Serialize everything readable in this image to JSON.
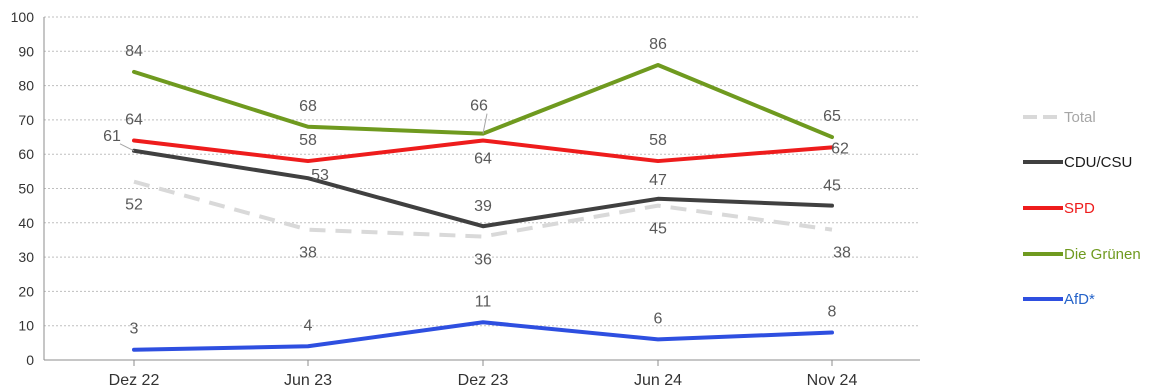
{
  "chart_data": {
    "type": "line",
    "categories": [
      "Dez 22",
      "Jun 23",
      "Dez 23",
      "Jun 24",
      "Nov 24"
    ],
    "ylim": [
      0,
      100
    ],
    "yticks": [
      0,
      10,
      20,
      30,
      40,
      50,
      60,
      70,
      80,
      90,
      100
    ],
    "grid": true,
    "legend_position": "right",
    "series": [
      {
        "name": "Total",
        "values": [
          52,
          38,
          36,
          45,
          38
        ],
        "color": "#d9d9d9",
        "dashed": true
      },
      {
        "name": "CDU/CSU",
        "values": [
          61,
          53,
          39,
          47,
          45
        ],
        "color": "#404040",
        "dashed": false
      },
      {
        "name": "SPD",
        "values": [
          64,
          58,
          64,
          58,
          62
        ],
        "color": "#ee1c1c",
        "dashed": false
      },
      {
        "name": "Die Grünen",
        "values": [
          84,
          68,
          66,
          86,
          65
        ],
        "color": "#6f9a1f",
        "dashed": false
      },
      {
        "name": "AfD*",
        "values": [
          3,
          4,
          11,
          6,
          8
        ],
        "color": "#2e4fe0",
        "dashed": false
      }
    ],
    "legend_text_colors": {
      "Total": "#a6a6a6",
      "CDU/CSU": "#1a1a1a",
      "SPD": "#ee1c1c",
      "Die Grünen": "#6f9a1f",
      "AfD*": "#2563c9"
    }
  }
}
